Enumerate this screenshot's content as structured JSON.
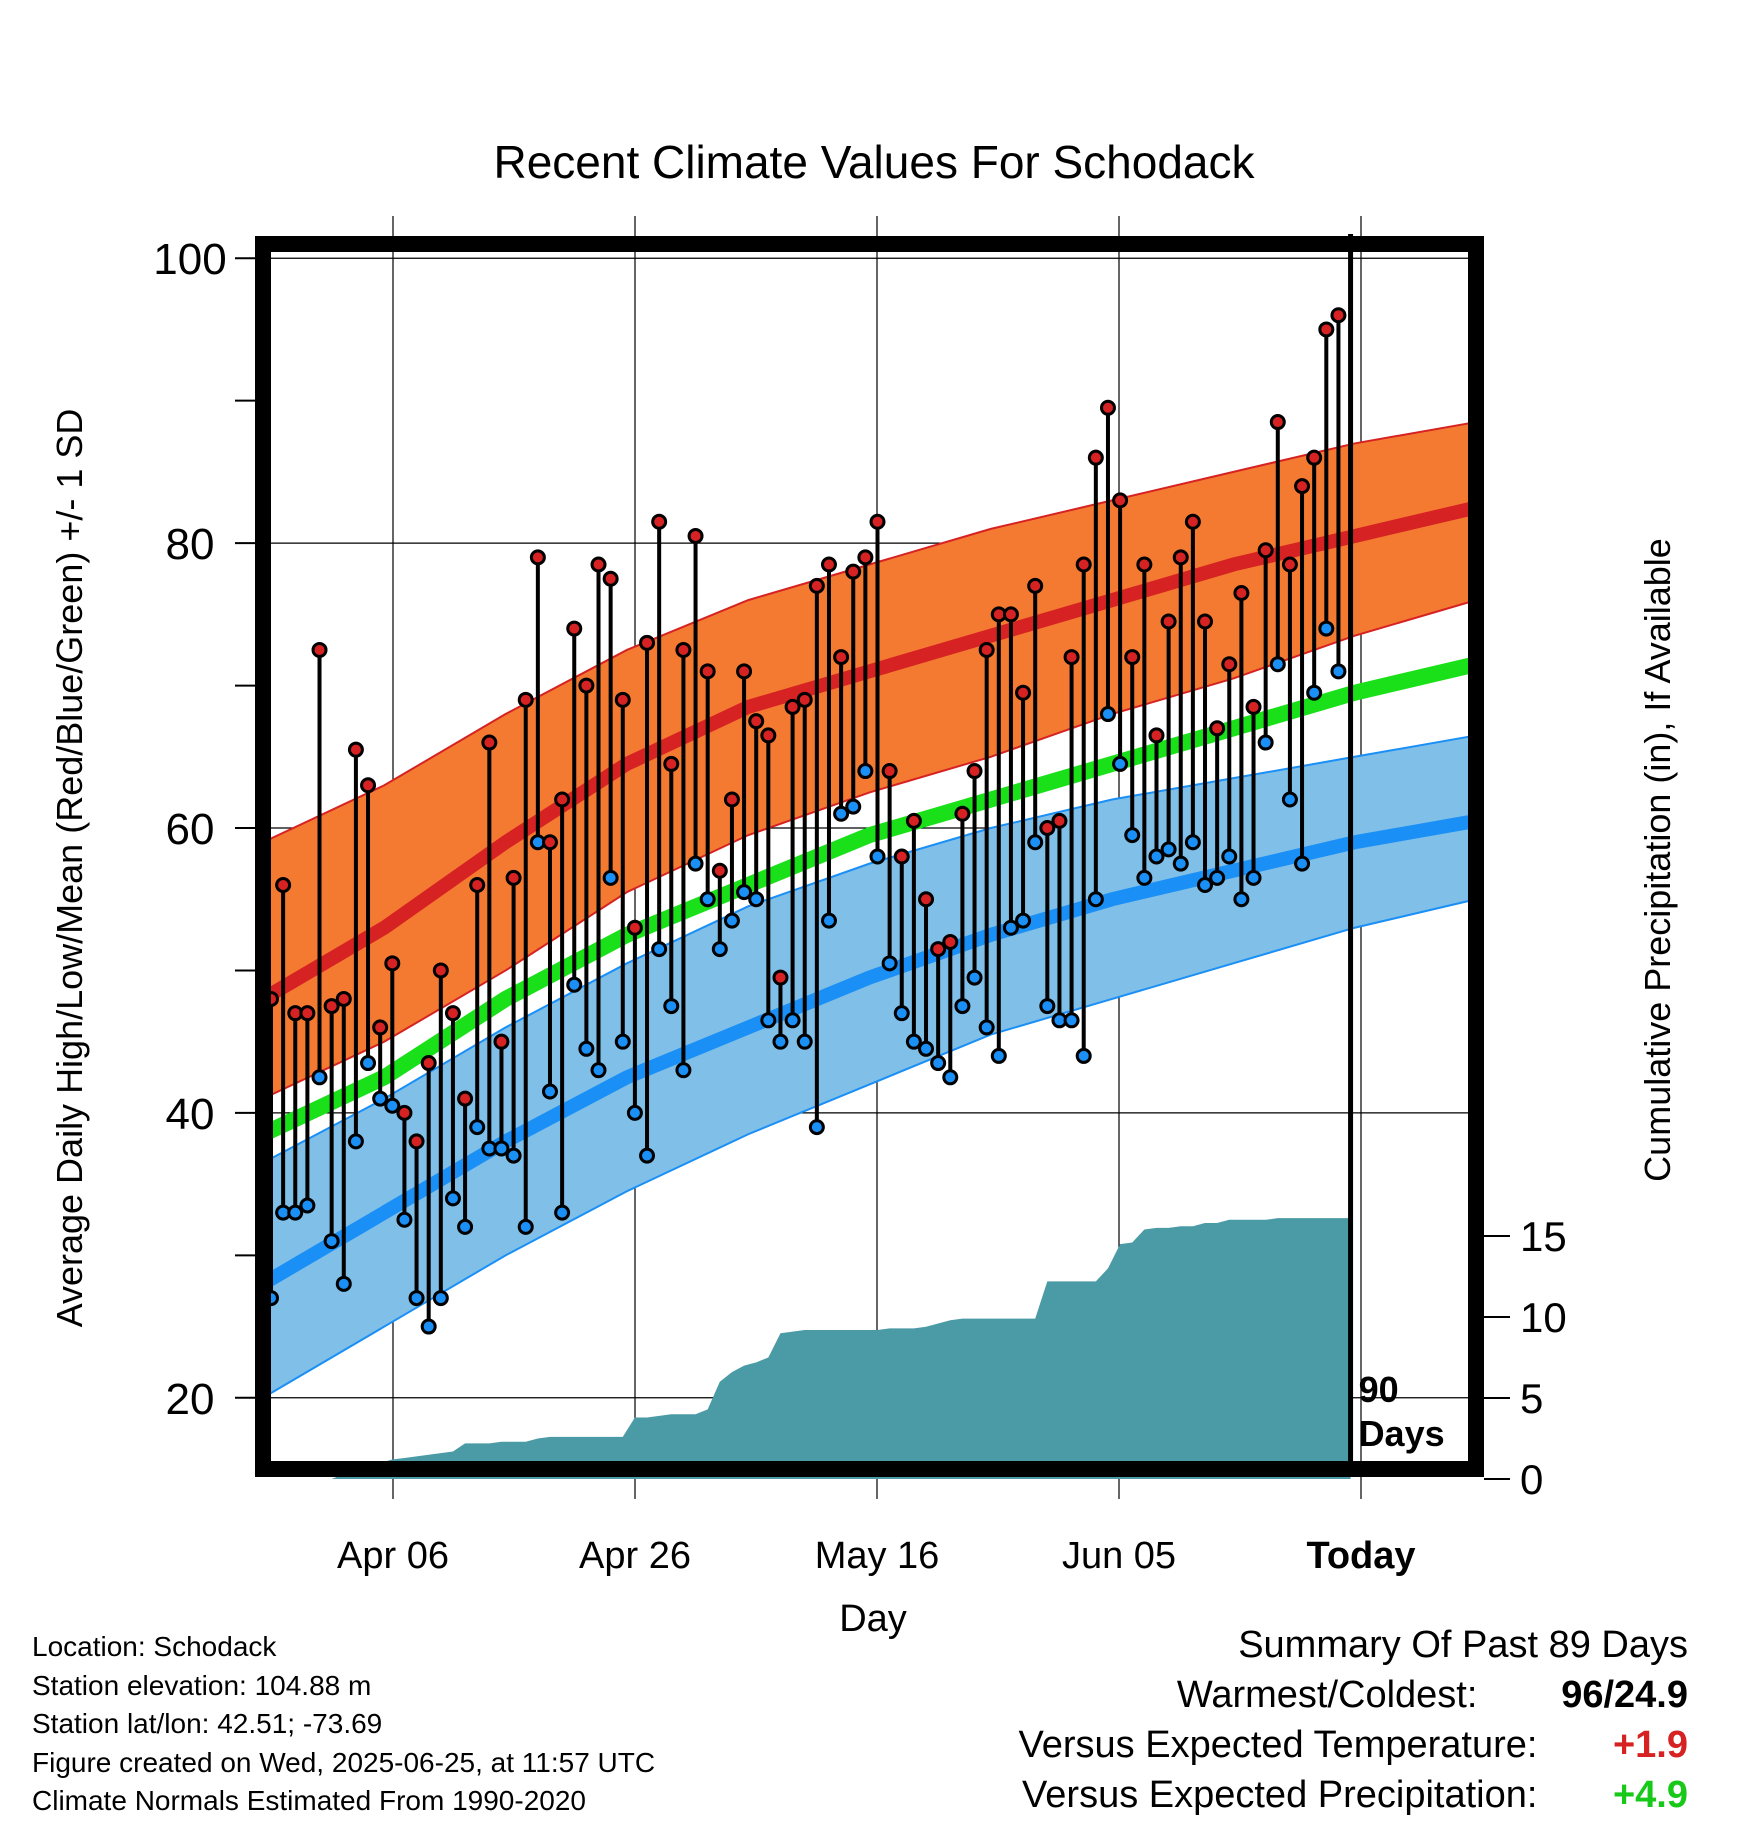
{
  "chart_data": {
    "type": "line",
    "title": "Recent Climate Values For Schodack",
    "xlabel": "Day",
    "ylabel": "Average Daily High/Low/Mean (Red/Blue/Green) +/- 1 SD",
    "y2label": "Cumulative Precipitation (in), If Available",
    "ylim": [
      15,
      101
    ],
    "y2lim": [
      0,
      20
    ],
    "yticks": [
      20,
      40,
      60,
      80,
      100
    ],
    "y2ticks": [
      0,
      5,
      10,
      15
    ],
    "xtick_labels": [
      "Apr 06",
      "Apr 26",
      "May 16",
      "Jun 05",
      "Today"
    ],
    "today_label": "90 Days",
    "normals": {
      "high_mean": [
        48,
        53,
        59,
        64.5,
        68.5,
        71,
        73.5,
        76,
        78.5,
        80.5,
        82.5
      ],
      "high_upper": [
        59,
        63,
        68,
        72.5,
        76,
        78.5,
        81,
        83,
        85,
        87,
        88.5
      ],
      "high_lower": [
        41,
        45,
        50,
        55.5,
        59.5,
        62.5,
        65,
        68,
        70.5,
        73.5,
        76
      ],
      "mean": [
        38.5,
        42.5,
        48,
        52.5,
        56,
        59.5,
        62,
        64.5,
        67,
        69.5,
        71.5
      ],
      "low_mean": [
        28,
        33,
        38,
        42.5,
        46,
        49.5,
        52.5,
        55,
        57,
        59,
        60.5
      ],
      "low_upper": [
        36.5,
        41,
        46,
        50.5,
        54.5,
        57.5,
        60,
        62,
        63.5,
        65,
        66.5
      ],
      "low_lower": [
        20,
        25,
        30,
        34.5,
        38.5,
        42,
        45.5,
        48,
        50.5,
        53,
        55
      ]
    },
    "highs": [
      48,
      56,
      47,
      47,
      72.5,
      47.5,
      48,
      65.5,
      63,
      46,
      50.5,
      40,
      38,
      43.5,
      50,
      47,
      41,
      56,
      66,
      45,
      56.5,
      69,
      79,
      59,
      62,
      74,
      70,
      78.5,
      77.5,
      69,
      53,
      73,
      81.5,
      64.5,
      72.5,
      80.5,
      71,
      57,
      62,
      71,
      67.5,
      66.5,
      49.5,
      68.5,
      69,
      77,
      78.5,
      72,
      78,
      79,
      81.5,
      64,
      58,
      60.5,
      55,
      51.5,
      52,
      61,
      64,
      72.5,
      75,
      75,
      69.5,
      77,
      60,
      60.5,
      72,
      78.5,
      86,
      89.5,
      83,
      72,
      78.5,
      66.5,
      74.5,
      79,
      81.5,
      74.5,
      67,
      71.5,
      76.5,
      68.5,
      79.5,
      88.5,
      78.5,
      84,
      86,
      95,
      96
    ],
    "lows": [
      27,
      33,
      33,
      33.5,
      42.5,
      31,
      28,
      38,
      43.5,
      41,
      40.5,
      32.5,
      27,
      25,
      27,
      34,
      32,
      39,
      37.5,
      37.5,
      37,
      32,
      59,
      41.5,
      33,
      49,
      44.5,
      43,
      56.5,
      45,
      40,
      37,
      51.5,
      47.5,
      43,
      57.5,
      55,
      51.5,
      53.5,
      55.5,
      55,
      46.5,
      45,
      46.5,
      45,
      39,
      53.5,
      61,
      61.5,
      64,
      58,
      50.5,
      47,
      45,
      44.5,
      43.5,
      42.5,
      47.5,
      49.5,
      46,
      44,
      53,
      53.5,
      59,
      47.5,
      46.5,
      46.5,
      44,
      55,
      68,
      64.5,
      59.5,
      56.5,
      58,
      58.5,
      57.5,
      59,
      56,
      56.5,
      58,
      55,
      56.5,
      66,
      71.5,
      62,
      57.5,
      69.5,
      74,
      71
    ],
    "precip_cumulative": [
      0,
      0,
      0,
      0,
      0,
      0,
      0.3,
      0.5,
      0.6,
      1,
      1.2,
      1.3,
      1.4,
      1.5,
      1.6,
      1.7,
      2.2,
      2.2,
      2.2,
      2.3,
      2.3,
      2.3,
      2.5,
      2.6,
      2.6,
      2.6,
      2.6,
      2.6,
      2.6,
      2.6,
      3.8,
      3.8,
      3.9,
      4,
      4,
      4,
      4.3,
      6,
      6.6,
      7,
      7.2,
      7.5,
      9,
      9.1,
      9.2,
      9.2,
      9.2,
      9.2,
      9.2,
      9.2,
      9.2,
      9.3,
      9.3,
      9.3,
      9.4,
      9.6,
      9.8,
      9.9,
      9.9,
      9.9,
      9.9,
      9.9,
      9.9,
      9.9,
      12.2,
      12.2,
      12.2,
      12.2,
      12.2,
      13,
      14.5,
      14.6,
      15.4,
      15.5,
      15.5,
      15.6,
      15.6,
      15.8,
      15.8,
      16,
      16,
      16,
      16,
      16.1,
      16.1,
      16.1,
      16.1,
      16.1,
      16.1
    ],
    "colors": {
      "high_band": "#f47a32",
      "high_line": "#d62222",
      "mean_line": "#19e019",
      "low_band": "#7fbfe8",
      "low_line": "#1a8ff5",
      "precip": "#4a9ba5",
      "high_dot": "#d62222",
      "low_dot": "#1a8ff5"
    },
    "grid": true
  },
  "metadata": {
    "location": "Location: Schodack",
    "elevation": "Station elevation: 104.88 m",
    "latlon": "Station lat/lon: 42.51; -73.69",
    "created": "Figure created on Wed, 2025-06-25, at 11:57 UTC",
    "normals": "Climate Normals Estimated From 1990-2020"
  },
  "summary": {
    "title": "Summary Of Past 89 Days",
    "warmest_label": "Warmest/Coldest:",
    "warmest_value": "96",
    "coldest_value": "24.9",
    "temp_label": "Versus Expected Temperature:",
    "temp_value": "+1.9",
    "temp_color": "#d62222",
    "precip_label": "Versus Expected Precipitation:",
    "precip_value": "+4.9",
    "precip_color": "#19c919"
  }
}
